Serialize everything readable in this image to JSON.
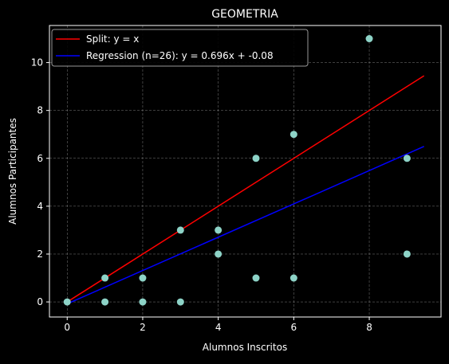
{
  "chart_data": {
    "type": "scatter",
    "title": "GEOMETRIA",
    "xlabel": "Alumnos Inscritos",
    "ylabel": "Alumnos Participantes",
    "xlim": [
      -0.47,
      9.9
    ],
    "ylim": [
      -0.63,
      11.55
    ],
    "xticks": [
      0,
      2,
      4,
      6,
      8
    ],
    "yticks": [
      0,
      2,
      4,
      6,
      8,
      10
    ],
    "grid": true,
    "legend_position": "top-left",
    "background": "#000000",
    "points": [
      {
        "x": 0,
        "y": 0
      },
      {
        "x": 1,
        "y": 1
      },
      {
        "x": 1,
        "y": 0
      },
      {
        "x": 2,
        "y": 1
      },
      {
        "x": 2,
        "y": 0
      },
      {
        "x": 3,
        "y": 3
      },
      {
        "x": 3,
        "y": 0
      },
      {
        "x": 4,
        "y": 3
      },
      {
        "x": 4,
        "y": 2
      },
      {
        "x": 5,
        "y": 6
      },
      {
        "x": 5,
        "y": 1
      },
      {
        "x": 6,
        "y": 7
      },
      {
        "x": 6,
        "y": 1
      },
      {
        "x": 8,
        "y": 11
      },
      {
        "x": 9,
        "y": 6
      },
      {
        "x": 9,
        "y": 2
      }
    ],
    "point_color": "#8dd3c7",
    "lines": [
      {
        "name": "Split: y = x",
        "color": "#ff0000",
        "slope": 1.0,
        "intercept": 0.0,
        "x_range": [
          0,
          9.45
        ]
      },
      {
        "name": "Regression (n=26): y = 0.696x + -0.08",
        "color": "#0000ff",
        "slope": 0.696,
        "intercept": -0.08,
        "x_range": [
          0,
          9.45
        ]
      }
    ]
  }
}
